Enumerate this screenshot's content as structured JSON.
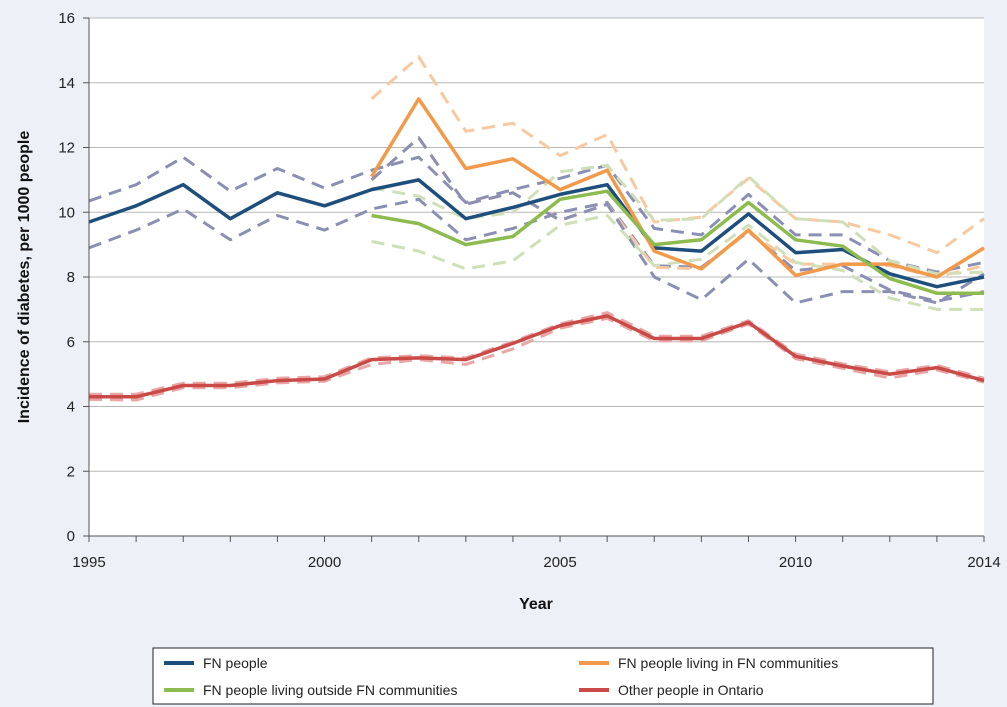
{
  "chart_data": {
    "type": "line",
    "title": "",
    "xlabel": "Year",
    "ylabel": "Incidence of diabetes, per 1000 people",
    "xlim": [
      1995,
      2014
    ],
    "ylim": [
      0,
      16
    ],
    "x_ticks": [
      1995,
      2000,
      2005,
      2010,
      2014
    ],
    "y_ticks": [
      0,
      2,
      4,
      6,
      8,
      10,
      12,
      14,
      16
    ],
    "grid": "horizontal",
    "legend_position": "bottom",
    "series": [
      {
        "name": "FN people",
        "color": "#1d4e7c",
        "style": "solid",
        "x": [
          1995,
          1996,
          1997,
          1998,
          1999,
          2000,
          2001,
          2002,
          2003,
          2004,
          2005,
          2006,
          2007,
          2008,
          2009,
          2010,
          2011,
          2012,
          2013,
          2014
        ],
        "y": [
          9.7,
          10.2,
          10.85,
          9.8,
          10.6,
          10.2,
          10.7,
          11.0,
          9.8,
          10.15,
          10.55,
          10.85,
          8.9,
          8.8,
          9.95,
          8.75,
          8.85,
          8.1,
          7.7,
          8.0
        ]
      },
      {
        "name": "FN people living in FN communities",
        "color": "#f39a4a",
        "style": "solid",
        "x": [
          2001,
          2002,
          2003,
          2004,
          2005,
          2006,
          2007,
          2008,
          2009,
          2010,
          2011,
          2012,
          2013,
          2014
        ],
        "y": [
          11.1,
          13.5,
          11.35,
          11.65,
          10.7,
          11.3,
          8.8,
          8.25,
          9.45,
          8.05,
          8.4,
          8.4,
          8.0,
          8.9
        ]
      },
      {
        "name": "FN people living outside FN communities",
        "color": "#8dbb4f",
        "style": "solid",
        "x": [
          2001,
          2002,
          2003,
          2004,
          2005,
          2006,
          2007,
          2008,
          2009,
          2010,
          2011,
          2012,
          2013,
          2014
        ],
        "y": [
          9.9,
          9.65,
          9.0,
          9.25,
          10.4,
          10.65,
          9.0,
          9.15,
          10.3,
          9.15,
          8.95,
          7.95,
          7.5,
          7.5
        ]
      },
      {
        "name": "Other people in Ontario",
        "color": "#c94a47",
        "style": "solid",
        "x": [
          1995,
          1996,
          1997,
          1998,
          1999,
          2000,
          2001,
          2002,
          2003,
          2004,
          2005,
          2006,
          2007,
          2008,
          2009,
          2010,
          2011,
          2012,
          2013,
          2014
        ],
        "y": [
          4.3,
          4.3,
          4.65,
          4.65,
          4.8,
          4.85,
          5.45,
          5.5,
          5.45,
          5.95,
          6.5,
          6.8,
          6.1,
          6.1,
          6.6,
          5.55,
          5.25,
          5.0,
          5.2,
          4.8
        ]
      },
      {
        "color": "#8b8fb3",
        "style": "dashed",
        "x": [
          1995,
          1996,
          1997,
          1998,
          1999,
          2000,
          2001,
          2002,
          2003,
          2004,
          2005,
          2006,
          2007,
          2008,
          2009,
          2010,
          2011,
          2012,
          2013,
          2014
        ],
        "y": [
          10.35,
          10.85,
          11.7,
          10.65,
          11.35,
          10.75,
          11.3,
          11.7,
          10.3,
          10.7,
          11.05,
          11.45,
          9.5,
          9.3,
          10.55,
          9.3,
          9.3,
          8.5,
          8.15,
          8.45
        ]
      },
      {
        "color": "#8b8fb3",
        "style": "dashed",
        "x": [
          1995,
          1996,
          1997,
          1998,
          1999,
          2000,
          2001,
          2002,
          2003,
          2004,
          2005,
          2006,
          2007,
          2008,
          2009,
          2010,
          2011,
          2012,
          2013,
          2014
        ],
        "y": [
          8.9,
          9.45,
          10.1,
          9.15,
          9.9,
          9.45,
          10.1,
          10.4,
          9.15,
          9.5,
          10.0,
          10.3,
          8.35,
          8.3,
          9.4,
          8.2,
          8.35,
          7.6,
          7.25,
          7.55
        ]
      },
      {
        "color": "#f8c9a0",
        "style": "dashed",
        "x": [
          2001,
          2002,
          2003,
          2004,
          2005,
          2006,
          2007,
          2008,
          2009,
          2010,
          2011,
          2012,
          2013,
          2014
        ],
        "y": [
          13.5,
          14.8,
          12.5,
          12.75,
          11.75,
          12.4,
          9.7,
          9.85,
          11.05,
          9.8,
          9.7,
          9.3,
          8.75,
          9.8
        ]
      },
      {
        "color": "#f8c9a0",
        "style": "dashed",
        "x": [
          2001,
          2002,
          2003,
          2004,
          2005,
          2006,
          2007,
          2008,
          2009,
          2010,
          2011,
          2012,
          2013,
          2014
        ],
        "y": [
          11.0,
          12.3,
          10.25,
          10.6,
          9.75,
          10.25,
          8.3,
          8.25,
          9.4,
          8.4,
          8.4,
          8.35,
          8.0,
          8.35
        ]
      },
      {
        "color": "#8b8fb3",
        "style": "dashed",
        "x": [
          2001,
          2002,
          2003,
          2004,
          2005,
          2006,
          2007,
          2008,
          2009,
          2010,
          2011,
          2012,
          2013,
          2014
        ],
        "y": [
          11.0,
          12.3,
          10.25,
          10.6,
          9.75,
          10.25,
          8.0,
          7.3,
          8.55,
          7.2,
          7.55,
          7.55,
          7.2,
          8.1
        ]
      },
      {
        "color": "#cfe0b8",
        "style": "dashed",
        "x": [
          2001,
          2002,
          2003,
          2004,
          2005,
          2006,
          2007,
          2008,
          2009,
          2010,
          2011,
          2012,
          2013,
          2014
        ],
        "y": [
          10.75,
          10.5,
          9.8,
          10.0,
          11.25,
          11.45,
          9.75,
          9.8,
          11.1,
          9.8,
          9.7,
          8.5,
          8.1,
          8.15
        ]
      },
      {
        "color": "#cfe0b8",
        "style": "dashed",
        "x": [
          2001,
          2002,
          2003,
          2004,
          2005,
          2006,
          2007,
          2008,
          2009,
          2010,
          2011,
          2012,
          2013,
          2014
        ],
        "y": [
          9.1,
          8.8,
          8.25,
          8.5,
          9.6,
          9.9,
          8.35,
          8.55,
          9.6,
          8.45,
          8.2,
          7.35,
          7.0,
          7.0
        ]
      },
      {
        "color": "#e8a6a4",
        "style": "dashed",
        "x": [
          1995,
          1996,
          1997,
          1998,
          1999,
          2000,
          2001,
          2002,
          2003,
          2004,
          2005,
          2006,
          2007,
          2008,
          2009,
          2010,
          2011,
          2012,
          2013,
          2014
        ],
        "y": [
          4.38,
          4.38,
          4.72,
          4.72,
          4.87,
          4.92,
          5.5,
          5.57,
          5.5,
          6.0,
          6.55,
          6.9,
          6.17,
          6.17,
          6.65,
          5.62,
          5.32,
          5.07,
          5.27,
          4.87
        ]
      },
      {
        "color": "#e8a6a4",
        "style": "dashed",
        "x": [
          1995,
          1996,
          1997,
          1998,
          1999,
          2000,
          2001,
          2002,
          2003,
          2004,
          2005,
          2006,
          2007,
          2008,
          2009,
          2010,
          2011,
          2012,
          2013,
          2014
        ],
        "y": [
          4.22,
          4.2,
          4.58,
          4.58,
          4.73,
          4.78,
          5.3,
          5.45,
          5.3,
          5.78,
          6.42,
          6.72,
          6.03,
          6.03,
          6.55,
          5.48,
          5.18,
          4.88,
          5.13,
          4.75
        ]
      }
    ]
  },
  "legend": {
    "items": [
      {
        "label": "FN people",
        "color": "#1d4e7c"
      },
      {
        "label": "FN people living in FN communities",
        "color": "#f39a4a"
      },
      {
        "label": "FN people living outside FN communities",
        "color": "#8dbb4f"
      },
      {
        "label": "Other people in Ontario",
        "color": "#c94a47"
      }
    ]
  }
}
